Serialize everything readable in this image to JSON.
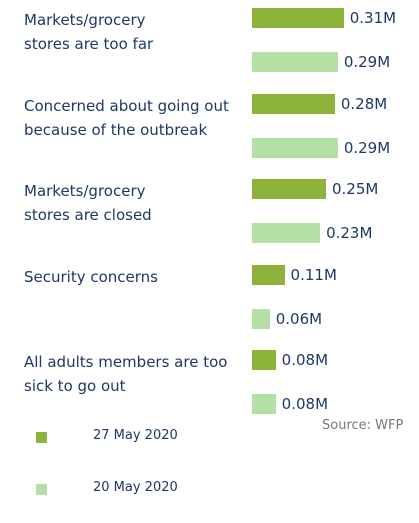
{
  "chart_data": {
    "type": "bar",
    "orientation": "horizontal",
    "categories": [
      "Markets/grocery\nstores are too far",
      "Concerned about going out\nbecause of the outbreak",
      "Markets/grocery\nstores are closed",
      "Security concerns",
      "All adults members are too\nsick to go out"
    ],
    "series": [
      {
        "name": "27 May 2020",
        "color": "#8db33a",
        "values": [
          0.31,
          0.28,
          0.25,
          0.11,
          0.08
        ],
        "value_labels": [
          "0.31M",
          "0.28M",
          "0.25M",
          "0.11M",
          "0.08M"
        ]
      },
      {
        "name": "20 May 2020",
        "color": "#b4e0a6",
        "values": [
          0.29,
          0.29,
          0.23,
          0.06,
          0.08
        ],
        "value_labels": [
          "0.29M",
          "0.29M",
          "0.23M",
          "0.06M",
          "0.08M"
        ]
      }
    ],
    "source": "Source: WFP"
  }
}
